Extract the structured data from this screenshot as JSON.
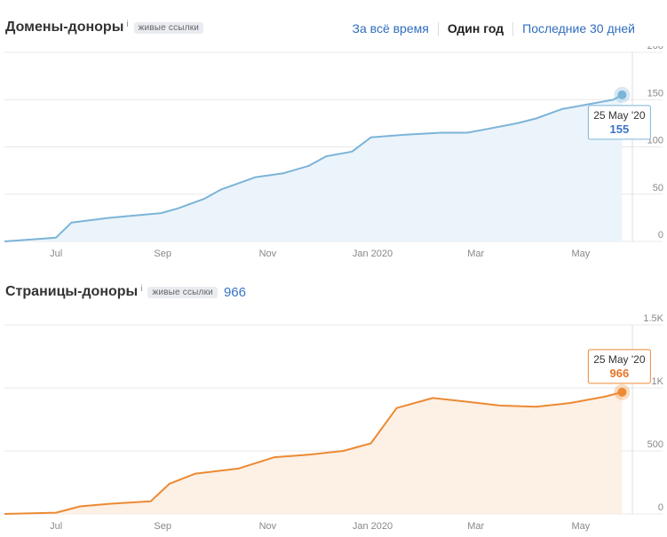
{
  "panels": {
    "domains": {
      "title": "Домены-доноры",
      "info": "i",
      "badge": "живые ссылки",
      "tabs": [
        "За всё время",
        "Один год",
        "Последние 30 дней"
      ],
      "active_tab": "Один год"
    },
    "pages": {
      "title": "Страницы-доноры",
      "info": "i",
      "badge": "живые ссылки",
      "count": "966"
    }
  },
  "colors": {
    "domains_line": "#7cb4d8",
    "domains_fill": "#ebf4fb",
    "pages_line": "#ec8a33",
    "pages_fill": "#fdf0e5",
    "grid": "#e8e8e8",
    "axis_text": "#888888"
  },
  "chart_data": [
    {
      "type": "area",
      "series": [
        {
          "name": "Домены-доноры",
          "x": [
            "2019-06-01",
            "2019-07-01",
            "2019-07-10",
            "2019-08-01",
            "2019-08-31",
            "2019-09-10",
            "2019-09-25",
            "2019-10-05",
            "2019-10-25",
            "2019-11-10",
            "2019-11-25",
            "2019-12-05",
            "2019-12-20",
            "2019-12-31",
            "2020-01-20",
            "2020-02-10",
            "2020-02-25",
            "2020-03-05",
            "2020-03-25",
            "2020-04-05",
            "2020-04-20",
            "2020-05-05",
            "2020-05-20",
            "2020-05-25"
          ],
          "values": [
            0,
            4,
            20,
            25,
            30,
            35,
            45,
            55,
            68,
            72,
            80,
            90,
            95,
            110,
            113,
            115,
            115,
            118,
            125,
            130,
            140,
            145,
            150,
            155
          ]
        }
      ],
      "x_ticks": [
        "Jul",
        "Sep",
        "Nov",
        "Jan 2020",
        "Mar",
        "May"
      ],
      "y_ticks": [
        "0",
        "50",
        "100",
        "150",
        "200"
      ],
      "ylim": [
        0,
        200
      ],
      "tooltip": {
        "date": "25 May '20",
        "value": "155"
      },
      "grid": true
    },
    {
      "type": "area",
      "series": [
        {
          "name": "Страницы-доноры",
          "x": [
            "2019-06-01",
            "2019-07-01",
            "2019-07-15",
            "2019-08-01",
            "2019-08-25",
            "2019-09-05",
            "2019-09-20",
            "2019-10-15",
            "2019-11-05",
            "2019-11-25",
            "2019-12-15",
            "2019-12-31",
            "2020-01-15",
            "2020-02-05",
            "2020-02-25",
            "2020-03-15",
            "2020-04-05",
            "2020-04-25",
            "2020-05-15",
            "2020-05-25"
          ],
          "values": [
            0,
            10,
            60,
            80,
            100,
            240,
            320,
            360,
            450,
            470,
            500,
            560,
            840,
            920,
            890,
            860,
            850,
            880,
            930,
            966
          ]
        }
      ],
      "x_ticks": [
        "Jul",
        "Sep",
        "Nov",
        "Jan 2020",
        "Mar",
        "May"
      ],
      "y_ticks": [
        "0",
        "500",
        "1K",
        "1.5K"
      ],
      "ylim": [
        0,
        1500
      ],
      "tooltip": {
        "date": "25 May '20",
        "value": "966"
      },
      "grid": true
    }
  ]
}
